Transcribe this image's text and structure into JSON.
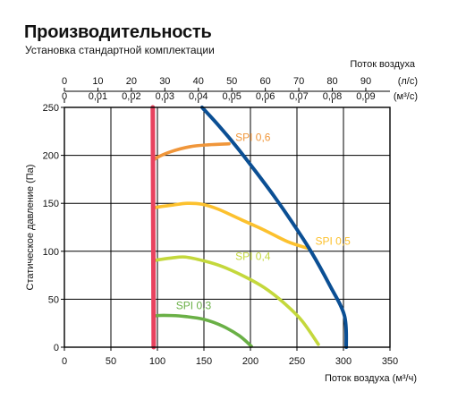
{
  "chart_data": {
    "type": "line",
    "title": "Производительность",
    "subtitle": "Установка стандартной комплектации",
    "xlabel": "Поток воздуха (м³/ч)",
    "ylabel": "Статическое давление (Па)",
    "xlim": [
      0,
      350
    ],
    "ylim": [
      0,
      250
    ],
    "x_ticks": [
      "0",
      "50",
      "100",
      "150",
      "200",
      "250",
      "300",
      "350"
    ],
    "y_ticks": [
      "0",
      "50",
      "100",
      "150",
      "200",
      "250"
    ],
    "top_axis_title": "Поток воздуха",
    "top_axis_1": {
      "unit": "(л/с)",
      "ticks": [
        "0",
        "10",
        "20",
        "30",
        "40",
        "50",
        "60",
        "70",
        "80",
        "90"
      ],
      "values": [
        0,
        10,
        20,
        30,
        40,
        50,
        60,
        70,
        80,
        90
      ]
    },
    "top_axis_2": {
      "unit": "(м³/с)",
      "ticks": [
        "0",
        "0,01",
        "0,02",
        "0,03",
        "0,04",
        "0,05",
        "0,06",
        "0,07",
        "0,08",
        "0,09"
      ],
      "values": [
        0,
        0.01,
        0.02,
        0.03,
        0.04,
        0.05,
        0.06,
        0.07,
        0.08,
        0.09
      ]
    },
    "grid": true,
    "series": [
      {
        "name": "SPI 0,6",
        "color": "#f0963a",
        "points": [
          [
            96,
            195
          ],
          [
            100,
            198
          ],
          [
            115,
            204
          ],
          [
            135,
            209
          ],
          [
            155,
            211
          ],
          [
            177,
            212
          ]
        ]
      },
      {
        "name": "SPI 0,5",
        "color": "#fcc12e",
        "points": [
          [
            96,
            145
          ],
          [
            100,
            146
          ],
          [
            115,
            148
          ],
          [
            132,
            150
          ],
          [
            148,
            149
          ],
          [
            165,
            144
          ],
          [
            190,
            133
          ],
          [
            215,
            122
          ],
          [
            240,
            110
          ],
          [
            262,
            103
          ]
        ]
      },
      {
        "name": "SPI 0,4",
        "color": "#c4d83c",
        "points": [
          [
            96,
            90
          ],
          [
            100,
            91
          ],
          [
            115,
            93
          ],
          [
            130,
            94
          ],
          [
            150,
            90
          ],
          [
            170,
            84
          ],
          [
            195,
            73
          ],
          [
            215,
            62
          ],
          [
            235,
            47
          ],
          [
            255,
            28
          ],
          [
            273,
            3
          ]
        ]
      },
      {
        "name": "SPI 0,3",
        "color": "#6ab046",
        "points": [
          [
            96,
            32
          ],
          [
            100,
            33
          ],
          [
            115,
            33
          ],
          [
            130,
            32
          ],
          [
            150,
            29
          ],
          [
            170,
            22
          ],
          [
            188,
            12
          ],
          [
            201,
            1
          ]
        ]
      },
      {
        "name": "",
        "color": "#0b4f94",
        "points": [
          [
            148,
            250
          ],
          [
            165,
            232
          ],
          [
            185,
            209
          ],
          [
            205,
            184
          ],
          [
            225,
            158
          ],
          [
            245,
            130
          ],
          [
            265,
            100
          ],
          [
            285,
            65
          ],
          [
            301,
            33
          ],
          [
            303,
            0
          ]
        ]
      },
      {
        "name": "",
        "color": "#e8435f",
        "points": [
          [
            95,
            250
          ],
          [
            96,
            0
          ]
        ]
      }
    ]
  }
}
